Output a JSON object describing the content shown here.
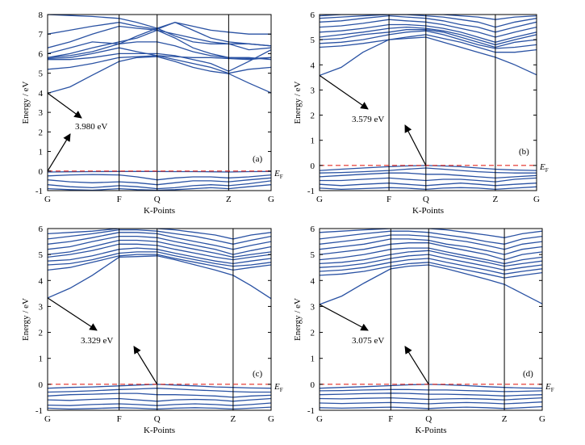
{
  "colors": {
    "band": "#2a52a3",
    "fermi": "#e32b22",
    "axis": "#000000"
  },
  "chart_data": [
    {
      "type": "line",
      "panel_label": "(a)",
      "xlabel": "K-Points",
      "ylabel": "Energy / eV",
      "k_ticks": [
        "G",
        "F",
        "Q",
        "Z",
        "G"
      ],
      "k_positions": [
        0,
        0.32,
        0.49,
        0.81,
        1.0
      ],
      "ylim": [
        -1,
        8
      ],
      "yticks": [
        -1,
        0,
        1,
        2,
        3,
        4,
        5,
        6,
        7,
        8
      ],
      "fermi_label": "E",
      "fermi_sub": "F",
      "fermi_level": 0,
      "gap_label": "3.980 eV",
      "gap": {
        "vbm": [
          0,
          0.0
        ],
        "cbm": [
          0,
          3.98
        ]
      },
      "bands_k": [
        0,
        0.1,
        0.2,
        0.32,
        0.4,
        0.49,
        0.57,
        0.65,
        0.73,
        0.81,
        0.9,
        1.0
      ],
      "bands": [
        [
          -0.05,
          -0.04,
          -0.03,
          -0.02,
          -0.02,
          -0.02,
          -0.03,
          -0.03,
          -0.04,
          -0.05,
          -0.03,
          -0.02
        ],
        [
          -0.25,
          -0.2,
          -0.18,
          -0.2,
          -0.3,
          -0.45,
          -0.35,
          -0.3,
          -0.3,
          -0.35,
          -0.3,
          -0.2
        ],
        [
          -0.45,
          -0.55,
          -0.6,
          -0.55,
          -0.6,
          -0.7,
          -0.6,
          -0.5,
          -0.5,
          -0.55,
          -0.45,
          -0.35
        ],
        [
          -0.7,
          -0.8,
          -0.85,
          -0.75,
          -0.8,
          -0.9,
          -0.85,
          -0.75,
          -0.7,
          -0.75,
          -0.65,
          -0.5
        ],
        [
          -0.9,
          -0.95,
          -0.98,
          -0.9,
          -0.95,
          -0.98,
          -0.95,
          -0.9,
          -0.85,
          -0.9,
          -0.8,
          -0.7
        ],
        [
          3.98,
          4.3,
          4.9,
          5.6,
          5.8,
          5.85,
          5.6,
          5.3,
          5.1,
          4.98,
          4.5,
          4.0
        ],
        [
          5.2,
          5.3,
          5.5,
          5.8,
          5.85,
          5.9,
          5.7,
          5.5,
          5.3,
          5.0,
          5.2,
          5.3
        ],
        [
          5.7,
          5.7,
          5.8,
          6.0,
          6.0,
          6.0,
          5.9,
          5.7,
          5.5,
          5.1,
          5.6,
          6.2
        ],
        [
          5.75,
          5.8,
          6.0,
          6.3,
          6.1,
          5.9,
          5.85,
          5.8,
          5.8,
          5.75,
          5.7,
          5.8
        ],
        [
          5.8,
          5.9,
          6.1,
          6.5,
          6.6,
          6.6,
          6.4,
          6.1,
          5.9,
          5.8,
          5.8,
          5.7
        ],
        [
          5.8,
          6.0,
          6.3,
          6.6,
          6.8,
          7.2,
          6.8,
          6.3,
          6.0,
          5.8,
          5.75,
          5.8
        ],
        [
          6.0,
          6.3,
          6.6,
          6.5,
          6.9,
          7.3,
          6.9,
          6.6,
          6.5,
          6.5,
          6.2,
          6.3
        ],
        [
          6.3,
          6.6,
          7.0,
          7.4,
          7.3,
          7.2,
          7.0,
          6.8,
          6.6,
          6.5,
          6.5,
          6.4
        ],
        [
          7.0,
          7.2,
          7.4,
          7.6,
          7.4,
          7.25,
          7.6,
          7.2,
          6.8,
          6.6,
          6.5,
          6.4
        ],
        [
          8.0,
          7.95,
          7.9,
          7.8,
          7.6,
          7.3,
          7.6,
          7.4,
          7.2,
          7.1,
          7.0,
          7.0
        ]
      ]
    },
    {
      "type": "line",
      "panel_label": "(b)",
      "xlabel": "K-Points",
      "ylabel": "Energy / eV",
      "k_ticks": [
        "G",
        "F",
        "Q",
        "Z",
        "G"
      ],
      "k_positions": [
        0,
        0.32,
        0.49,
        0.81,
        1.0
      ],
      "ylim": [
        -1,
        6
      ],
      "yticks": [
        -1,
        0,
        1,
        2,
        3,
        4,
        5,
        6
      ],
      "fermi_label": "E",
      "fermi_sub": "F",
      "fermi_level": 0,
      "gap_label": "3.579 eV",
      "gap": {
        "vbm": [
          0.49,
          0.0
        ],
        "cbm": [
          0,
          3.579
        ]
      },
      "bands_k": [
        0,
        0.1,
        0.2,
        0.32,
        0.4,
        0.49,
        0.57,
        0.65,
        0.73,
        0.81,
        0.9,
        1.0
      ],
      "bands": [
        [
          -0.2,
          -0.15,
          -0.1,
          -0.05,
          -0.02,
          0.0,
          -0.02,
          -0.05,
          -0.1,
          -0.15,
          -0.18,
          -0.2
        ],
        [
          -0.3,
          -0.28,
          -0.25,
          -0.2,
          -0.15,
          -0.1,
          -0.15,
          -0.2,
          -0.25,
          -0.28,
          -0.3,
          -0.3
        ],
        [
          -0.45,
          -0.4,
          -0.35,
          -0.3,
          -0.3,
          -0.35,
          -0.35,
          -0.4,
          -0.45,
          -0.5,
          -0.45,
          -0.4
        ],
        [
          -0.6,
          -0.6,
          -0.55,
          -0.5,
          -0.55,
          -0.6,
          -0.55,
          -0.55,
          -0.6,
          -0.65,
          -0.55,
          -0.5
        ],
        [
          -0.75,
          -0.8,
          -0.75,
          -0.7,
          -0.75,
          -0.8,
          -0.75,
          -0.7,
          -0.75,
          -0.8,
          -0.75,
          -0.7
        ],
        [
          -0.9,
          -0.95,
          -0.92,
          -0.88,
          -0.9,
          -0.95,
          -0.9,
          -0.88,
          -0.9,
          -0.95,
          -0.9,
          -0.85
        ],
        [
          3.579,
          3.9,
          4.5,
          5.0,
          5.05,
          5.1,
          4.9,
          4.7,
          4.5,
          4.3,
          4.0,
          3.6
        ],
        [
          4.7,
          4.75,
          4.85,
          5.0,
          5.1,
          5.2,
          5.05,
          4.9,
          4.7,
          4.5,
          4.5,
          4.6
        ],
        [
          4.85,
          4.9,
          5.0,
          5.2,
          5.3,
          5.35,
          5.2,
          5.0,
          4.8,
          4.65,
          4.7,
          4.8
        ],
        [
          5.0,
          5.05,
          5.2,
          5.3,
          5.4,
          5.4,
          5.3,
          5.1,
          4.9,
          4.7,
          4.9,
          5.0
        ],
        [
          5.1,
          5.2,
          5.3,
          5.45,
          5.5,
          5.45,
          5.35,
          5.2,
          5.0,
          4.8,
          5.0,
          5.2
        ],
        [
          5.3,
          5.35,
          5.45,
          5.6,
          5.6,
          5.55,
          5.45,
          5.3,
          5.1,
          4.9,
          5.1,
          5.3
        ],
        [
          5.5,
          5.55,
          5.65,
          5.8,
          5.75,
          5.7,
          5.6,
          5.45,
          5.3,
          5.1,
          5.3,
          5.5
        ],
        [
          5.7,
          5.75,
          5.85,
          5.95,
          5.9,
          5.85,
          5.75,
          5.6,
          5.5,
          5.3,
          5.5,
          5.7
        ],
        [
          5.85,
          5.9,
          5.95,
          6.0,
          6.0,
          5.95,
          5.9,
          5.8,
          5.7,
          5.5,
          5.7,
          5.85
        ],
        [
          5.95,
          6.0,
          6.0,
          6.0,
          6.0,
          6.0,
          6.0,
          5.95,
          5.9,
          5.8,
          5.9,
          5.95
        ]
      ]
    },
    {
      "type": "line",
      "panel_label": "(c)",
      "xlabel": "K-Points",
      "ylabel": "Energy / eV",
      "k_ticks": [
        "G",
        "F",
        "Q",
        "Z",
        "G"
      ],
      "k_positions": [
        0,
        0.32,
        0.49,
        0.83,
        1.0
      ],
      "ylim": [
        -1,
        6
      ],
      "yticks": [
        -1,
        0,
        1,
        2,
        3,
        4,
        5,
        6
      ],
      "fermi_label": "E",
      "fermi_sub": "F",
      "fermi_level": 0,
      "gap_label": "3.329 eV",
      "gap": {
        "vbm": [
          0.49,
          0.0
        ],
        "cbm": [
          0,
          3.329
        ]
      },
      "bands_k": [
        0,
        0.1,
        0.2,
        0.32,
        0.4,
        0.49,
        0.57,
        0.66,
        0.75,
        0.83,
        0.91,
        1.0
      ],
      "bands": [
        [
          -0.15,
          -0.12,
          -0.1,
          -0.06,
          -0.03,
          0.0,
          -0.03,
          -0.06,
          -0.1,
          -0.12,
          -0.14,
          -0.15
        ],
        [
          -0.3,
          -0.28,
          -0.25,
          -0.2,
          -0.18,
          -0.15,
          -0.18,
          -0.22,
          -0.25,
          -0.28,
          -0.3,
          -0.3
        ],
        [
          -0.45,
          -0.4,
          -0.38,
          -0.35,
          -0.35,
          -0.4,
          -0.4,
          -0.42,
          -0.45,
          -0.5,
          -0.45,
          -0.42
        ],
        [
          -0.6,
          -0.62,
          -0.58,
          -0.55,
          -0.6,
          -0.65,
          -0.6,
          -0.58,
          -0.6,
          -0.65,
          -0.6,
          -0.55
        ],
        [
          -0.8,
          -0.82,
          -0.78,
          -0.75,
          -0.78,
          -0.82,
          -0.78,
          -0.75,
          -0.78,
          -0.82,
          -0.78,
          -0.72
        ],
        [
          -0.92,
          -0.95,
          -0.93,
          -0.9,
          -0.92,
          -0.95,
          -0.92,
          -0.9,
          -0.92,
          -0.95,
          -0.92,
          -0.88
        ],
        [
          3.329,
          3.7,
          4.2,
          4.9,
          4.92,
          4.95,
          4.8,
          4.6,
          4.4,
          4.2,
          3.8,
          3.3
        ],
        [
          4.4,
          4.5,
          4.7,
          4.95,
          5.0,
          5.0,
          4.85,
          4.7,
          4.55,
          4.4,
          4.5,
          4.6
        ],
        [
          4.6,
          4.65,
          4.8,
          5.05,
          5.1,
          5.1,
          4.95,
          4.8,
          4.65,
          4.55,
          4.6,
          4.7
        ],
        [
          4.75,
          4.8,
          4.95,
          5.2,
          5.25,
          5.2,
          5.05,
          4.9,
          4.75,
          4.65,
          4.75,
          4.85
        ],
        [
          4.9,
          5.0,
          5.15,
          5.4,
          5.4,
          5.35,
          5.2,
          5.05,
          4.9,
          4.8,
          4.9,
          5.0
        ],
        [
          5.0,
          5.1,
          5.3,
          5.55,
          5.55,
          5.5,
          5.35,
          5.2,
          5.05,
          4.9,
          5.0,
          5.1
        ],
        [
          5.2,
          5.3,
          5.5,
          5.7,
          5.7,
          5.65,
          5.5,
          5.35,
          5.2,
          5.0,
          5.15,
          5.3
        ],
        [
          5.4,
          5.5,
          5.65,
          5.85,
          5.85,
          5.8,
          5.65,
          5.5,
          5.35,
          5.2,
          5.35,
          5.5
        ],
        [
          5.6,
          5.7,
          5.8,
          5.95,
          5.95,
          5.9,
          5.8,
          5.7,
          5.55,
          5.4,
          5.55,
          5.7
        ],
        [
          5.8,
          5.85,
          5.9,
          6.0,
          6.0,
          6.0,
          5.95,
          5.85,
          5.75,
          5.6,
          5.75,
          5.85
        ]
      ]
    },
    {
      "type": "line",
      "panel_label": "(d)",
      "xlabel": "K-Points",
      "ylabel": "Energy / eV",
      "k_ticks": [
        "G",
        "F",
        "Q",
        "Z",
        "G"
      ],
      "k_positions": [
        0,
        0.32,
        0.49,
        0.83,
        1.0
      ],
      "ylim": [
        -1,
        6
      ],
      "yticks": [
        -1,
        0,
        1,
        2,
        3,
        4,
        5,
        6
      ],
      "fermi_label": "E",
      "fermi_sub": "F",
      "fermi_level": 0,
      "gap_label": "3.075 eV",
      "gap": {
        "vbm": [
          0.49,
          0.0
        ],
        "cbm": [
          0,
          3.075
        ]
      },
      "bands_k": [
        0,
        0.1,
        0.2,
        0.32,
        0.4,
        0.49,
        0.57,
        0.66,
        0.75,
        0.83,
        0.91,
        1.0
      ],
      "bands": [
        [
          -0.15,
          -0.12,
          -0.09,
          -0.05,
          -0.02,
          0.0,
          -0.02,
          -0.05,
          -0.09,
          -0.12,
          -0.14,
          -0.15
        ],
        [
          -0.25,
          -0.24,
          -0.22,
          -0.2,
          -0.2,
          -0.22,
          -0.22,
          -0.24,
          -0.26,
          -0.28,
          -0.27,
          -0.25
        ],
        [
          -0.4,
          -0.38,
          -0.36,
          -0.34,
          -0.35,
          -0.38,
          -0.38,
          -0.4,
          -0.42,
          -0.45,
          -0.42,
          -0.4
        ],
        [
          -0.55,
          -0.56,
          -0.54,
          -0.52,
          -0.55,
          -0.58,
          -0.56,
          -0.55,
          -0.57,
          -0.6,
          -0.56,
          -0.52
        ],
        [
          -0.72,
          -0.74,
          -0.72,
          -0.7,
          -0.72,
          -0.75,
          -0.72,
          -0.7,
          -0.72,
          -0.75,
          -0.72,
          -0.68
        ],
        [
          -0.9,
          -0.92,
          -0.9,
          -0.88,
          -0.9,
          -0.93,
          -0.9,
          -0.88,
          -0.9,
          -0.93,
          -0.9,
          -0.86
        ],
        [
          3.075,
          3.4,
          3.9,
          4.45,
          4.55,
          4.6,
          4.45,
          4.25,
          4.05,
          3.85,
          3.5,
          3.1
        ],
        [
          4.2,
          4.25,
          4.35,
          4.55,
          4.65,
          4.7,
          4.55,
          4.4,
          4.25,
          4.1,
          4.2,
          4.3
        ],
        [
          4.35,
          4.4,
          4.5,
          4.7,
          4.8,
          4.85,
          4.7,
          4.55,
          4.4,
          4.25,
          4.35,
          4.45
        ],
        [
          4.5,
          4.55,
          4.65,
          4.85,
          4.95,
          5.0,
          4.85,
          4.7,
          4.55,
          4.4,
          4.5,
          4.6
        ],
        [
          4.65,
          4.7,
          4.8,
          5.0,
          5.1,
          5.15,
          5.0,
          4.85,
          4.7,
          4.55,
          4.65,
          4.75
        ],
        [
          4.8,
          4.88,
          5.0,
          5.2,
          5.25,
          5.25,
          5.1,
          4.95,
          4.8,
          4.65,
          4.8,
          4.9
        ],
        [
          5.0,
          5.1,
          5.2,
          5.4,
          5.45,
          5.45,
          5.3,
          5.15,
          5.0,
          4.8,
          5.0,
          5.1
        ],
        [
          5.2,
          5.3,
          5.4,
          5.6,
          5.6,
          5.55,
          5.4,
          5.3,
          5.15,
          5.0,
          5.2,
          5.3
        ],
        [
          5.4,
          5.5,
          5.6,
          5.75,
          5.75,
          5.7,
          5.6,
          5.5,
          5.35,
          5.2,
          5.4,
          5.5
        ],
        [
          5.6,
          5.7,
          5.8,
          5.9,
          5.9,
          5.85,
          5.75,
          5.65,
          5.5,
          5.4,
          5.6,
          5.7
        ],
        [
          5.85,
          5.9,
          5.95,
          6.0,
          6.0,
          6.0,
          5.95,
          5.85,
          5.75,
          5.65,
          5.8,
          5.9
        ]
      ]
    }
  ]
}
